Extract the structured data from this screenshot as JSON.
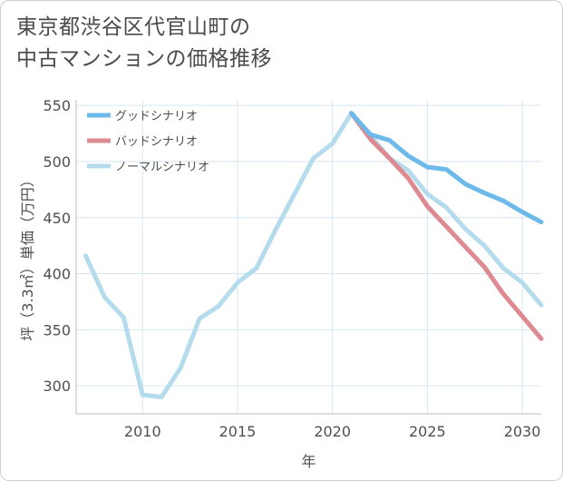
{
  "title": {
    "line1": "東京都渋谷区代官山町の",
    "line2": "中古マンションの価格推移"
  },
  "chart_data": {
    "type": "line",
    "xlabel": "年",
    "ylabel": "坪（3.3㎡）単価（万円）",
    "xlim": [
      2006.5,
      2031
    ],
    "ylim": [
      275,
      555
    ],
    "xticks": [
      2010,
      2015,
      2020,
      2025,
      2030
    ],
    "yticks": [
      300,
      350,
      400,
      450,
      500,
      550
    ],
    "xtick_labels": [
      "2010",
      "2015",
      "2020",
      "2025",
      "2030"
    ],
    "ytick_labels": [
      "300",
      "350",
      "400",
      "450",
      "500",
      "550"
    ],
    "grid": true,
    "legend_position": "top-left",
    "series": [
      {
        "name": "グッドシナリオ",
        "color": "#6cb9ea",
        "x": [
          2021,
          2022,
          2023,
          2024,
          2025,
          2026,
          2027,
          2028,
          2029,
          2030,
          2031
        ],
        "values": [
          543,
          524,
          519,
          505,
          495,
          493,
          480,
          472,
          465,
          455,
          446
        ]
      },
      {
        "name": "バッドシナリオ",
        "color": "#de8a92",
        "x": [
          2021,
          2022,
          2023,
          2024,
          2025,
          2026,
          2027,
          2028,
          2029,
          2030,
          2031
        ],
        "values": [
          543,
          520,
          503,
          485,
          460,
          442,
          424,
          406,
          382,
          362,
          342
        ]
      },
      {
        "name": "ノーマルシナリオ",
        "color": "#b5dced",
        "x": [
          2007,
          2008,
          2009,
          2010,
          2011,
          2012,
          2013,
          2014,
          2015,
          2016,
          2017,
          2018,
          2019,
          2020,
          2021,
          2022,
          2023,
          2024,
          2025,
          2026,
          2027,
          2028,
          2029,
          2030,
          2031
        ],
        "values": [
          416,
          379,
          361,
          292,
          290,
          316,
          360,
          371,
          392,
          405,
          439,
          471,
          503,
          516,
          543,
          523,
          503,
          492,
          471,
          459,
          440,
          425,
          405,
          392,
          372
        ]
      }
    ]
  }
}
